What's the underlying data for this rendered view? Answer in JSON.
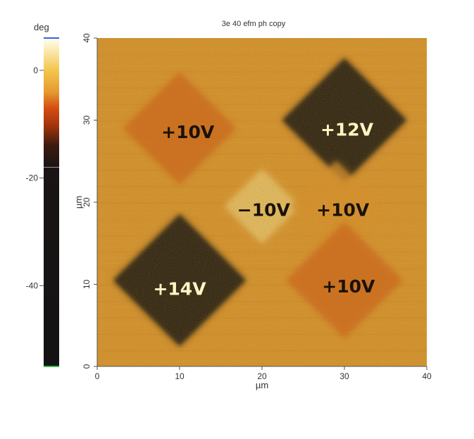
{
  "figure": {
    "title": "3e 40 efm ph copy",
    "image_source": "efm-phase-map"
  },
  "colorbar": {
    "unit": "deg",
    "ticks": [
      {
        "label": "0",
        "value": 0
      },
      {
        "label": "-20",
        "value": -20
      },
      {
        "label": "-40",
        "value": -40
      }
    ],
    "range": [
      -55,
      6
    ],
    "stops": [
      {
        "value": 6,
        "color": "#fffff2"
      },
      {
        "value": 0,
        "color": "#f3c64a"
      },
      {
        "value": -4,
        "color": "#e69a32"
      },
      {
        "value": -7,
        "color": "#d44f12"
      },
      {
        "value": -10,
        "color": "#a8360c"
      },
      {
        "value": -14,
        "color": "#3c1a10"
      },
      {
        "value": -18,
        "color": "#1a1414"
      },
      {
        "value": -55,
        "color": "#131313"
      }
    ],
    "top_edge_color": "#3b5fe0",
    "bottom_edge_color": "#3bb34a"
  },
  "axes": {
    "xlabel": "µm",
    "ylabel": "µm",
    "xlim": [
      0,
      40
    ],
    "ylim": [
      0,
      40
    ],
    "xticks": [
      "0",
      "10",
      "20",
      "30",
      "40"
    ],
    "yticks": [
      "0",
      "10",
      "20",
      "30",
      "40"
    ]
  },
  "regions": [
    {
      "label": "+10V",
      "cx": 10,
      "cy": 29,
      "half_diag": 6.8,
      "phase": -6,
      "text_color": "#1a1208"
    },
    {
      "label": "+12V",
      "cx": 30,
      "cy": 30,
      "half_diag": 7.5,
      "phase": -30,
      "text_color": "#fff6c2"
    },
    {
      "label": "−10V",
      "cx": 20,
      "cy": 19.5,
      "half_diag": 4.5,
      "phase": 2,
      "text_color": "#1a1208"
    },
    {
      "label": "+10V",
      "cx": 29,
      "cy": 19.5,
      "half_diag": 5.5,
      "phase": -4,
      "text_color": "#1a1208"
    },
    {
      "label": "+14V",
      "cx": 10,
      "cy": 10.5,
      "half_diag": 8.0,
      "phase": -45,
      "text_color": "#fff6c2"
    },
    {
      "label": "+10V",
      "cx": 30,
      "cy": 10.5,
      "half_diag": 7.0,
      "phase": -6,
      "text_color": "#1a1208"
    }
  ],
  "label_positions": [
    {
      "x": 11,
      "y": 28.6
    },
    {
      "x": 30.3,
      "y": 28.9
    },
    {
      "x": 20.2,
      "y": 19.1
    },
    {
      "x": 29.8,
      "y": 19.1
    },
    {
      "x": 10,
      "y": 9.5
    },
    {
      "x": 30.5,
      "y": 9.8
    }
  ]
}
